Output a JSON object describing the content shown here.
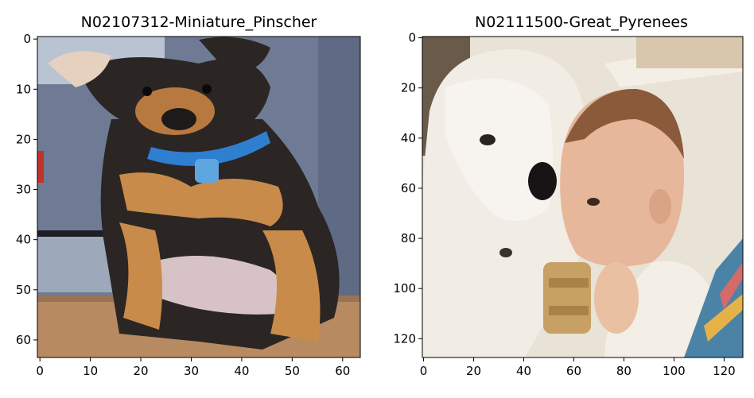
{
  "panels": [
    {
      "title": "N02107312-Miniature_Pinscher",
      "subject": "miniature-pinscher-photo",
      "xrange": [
        0,
        63
      ],
      "yrange": [
        0,
        63
      ],
      "xticks": [
        0,
        10,
        20,
        30,
        40,
        50,
        60
      ],
      "yticks": [
        0,
        10,
        20,
        30,
        40,
        50,
        60
      ],
      "colors": {
        "background": "#6f7b95",
        "floor": "#b78a62",
        "coat": "#2b2624",
        "tan": "#c98b4a",
        "collar": "#2f7fd1"
      }
    },
    {
      "title": "N02111500-Great_Pyrenees",
      "subject": "great-pyrenees-and-baby-photo",
      "xrange": [
        0,
        127
      ],
      "yrange": [
        0,
        127
      ],
      "xticks": [
        0,
        20,
        40,
        60,
        80,
        100,
        120
      ],
      "yticks": [
        0,
        20,
        40,
        60,
        80,
        100,
        120
      ],
      "colors": {
        "background": "#e9e2d6",
        "fur": "#f1ece4",
        "skin": "#e6b79a",
        "hair": "#8a5a3a",
        "bottle": "#c7a064"
      }
    }
  ]
}
